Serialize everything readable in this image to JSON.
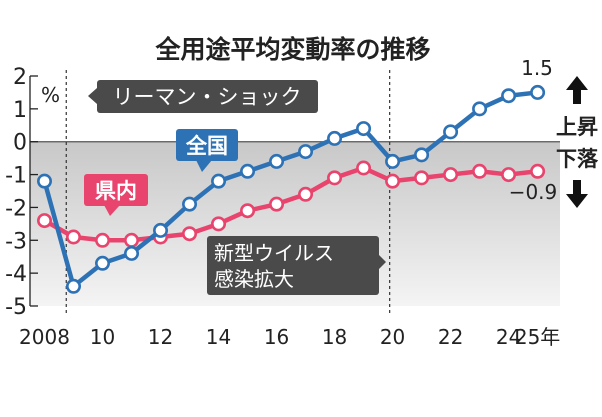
{
  "chart_data": {
    "type": "line",
    "title": "全用途平均変動率の推移",
    "unit_label": "%",
    "x_tick_labels": [
      "2008",
      "10",
      "12",
      "14",
      "16",
      "18",
      "20",
      "22",
      "24",
      "25年"
    ],
    "x_ticks": [
      2008,
      2010,
      2012,
      2014,
      2016,
      2018,
      2020,
      2022,
      2024,
      2025
    ],
    "y_ticks": [
      2,
      1,
      0,
      -1,
      -2,
      -3,
      -4,
      -5
    ],
    "xlim": [
      2007.5,
      2025.6
    ],
    "ylim": [
      -5,
      2
    ],
    "series": [
      {
        "name": "全国",
        "color": "#2e72b6",
        "x": [
          2008,
          2009,
          2010,
          2011,
          2012,
          2013,
          2014,
          2015,
          2016,
          2017,
          2018,
          2019,
          2020,
          2021,
          2022,
          2023,
          2024,
          2025
        ],
        "values": [
          -1.2,
          -4.4,
          -3.7,
          -3.4,
          -2.7,
          -1.9,
          -1.2,
          -0.9,
          -0.6,
          -0.3,
          0.1,
          0.4,
          -0.6,
          -0.4,
          0.3,
          1.0,
          1.4,
          1.5
        ]
      },
      {
        "name": "県内",
        "color": "#e8446d",
        "x": [
          2008,
          2009,
          2010,
          2011,
          2012,
          2013,
          2014,
          2015,
          2016,
          2017,
          2018,
          2019,
          2020,
          2021,
          2022,
          2023,
          2024,
          2025
        ],
        "values": [
          -2.4,
          -2.9,
          -3.0,
          -3.0,
          -2.9,
          -2.8,
          -2.5,
          -2.1,
          -1.9,
          -1.6,
          -1.1,
          -0.8,
          -1.2,
          -1.1,
          -1.0,
          -0.9,
          -1.0,
          -0.9
        ]
      }
    ],
    "end_labels": {
      "national_last": "1.5",
      "prefecture_last": "−0.9"
    },
    "event_lines": [
      {
        "x": 2008.75,
        "label": "リーマン・ショック"
      },
      {
        "x": 2019.9,
        "label": "新型ウイルス感染拡大"
      }
    ],
    "side_labels": {
      "up": "上昇",
      "down": "下落"
    },
    "label_national": "全国",
    "label_prefecture": "県内",
    "label_lehman": "リーマン・ショック",
    "label_covid_1": "新型ウイルス",
    "label_covid_2": "感染拡大"
  }
}
